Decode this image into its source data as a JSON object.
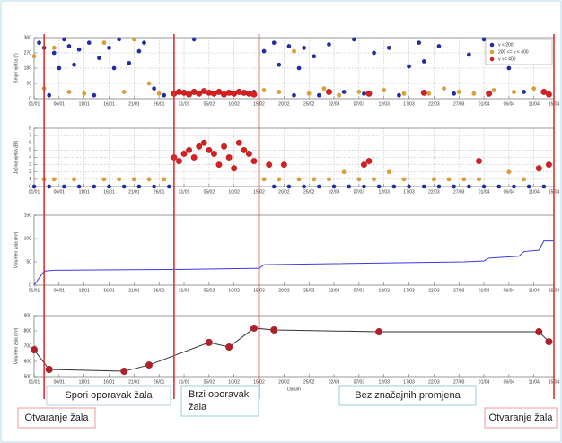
{
  "chart_data": [
    {
      "type": "scatter",
      "ylabel": "Smjer vjetra (°)",
      "ylim": [
        0,
        360
      ],
      "yticks": [
        0,
        90,
        180,
        270,
        360
      ],
      "grid": true,
      "legend": "upper right",
      "xlim": [
        "01/01",
        "15/04"
      ],
      "xticks": [
        "01/01",
        "06/01",
        "11/01",
        "16/01",
        "21/01",
        "26/01",
        "31/01",
        "05/02",
        "10/02",
        "15/02",
        "20/02",
        "25/02",
        "02/03",
        "07/03",
        "12/03",
        "17/03",
        "22/03",
        "27/03",
        "01/04",
        "06/04",
        "11/04",
        "15/04"
      ],
      "series": [
        {
          "name": "v < 200",
          "color": "#1f2ea8",
          "x": [
            "02/01",
            "03/01",
            "04/01",
            "05/01",
            "06/01",
            "07/01",
            "08/01",
            "09/01",
            "10/01",
            "12/01",
            "13/01",
            "14/01",
            "16/01",
            "17/01",
            "18/01",
            "20/01",
            "22/01",
            "23/01",
            "25/01",
            "27/01",
            "31/01",
            "02/02",
            "14/02",
            "16/02",
            "18/02",
            "19/02",
            "21/02",
            "22/02",
            "23/02",
            "24/02",
            "26/02",
            "27/02",
            "01/03",
            "04/03",
            "06/03",
            "08/03",
            "10/03",
            "13/03",
            "15/03",
            "17/03",
            "19/03",
            "20/03",
            "23/03",
            "26/03",
            "29/03",
            "01/04",
            "04/04",
            "06/04",
            "09/04",
            "12/04",
            "14/04"
          ],
          "values": [
            330,
            300,
            20,
            270,
            180,
            350,
            310,
            200,
            290,
            330,
            20,
            240,
            300,
            180,
            350,
            210,
            280,
            330,
            60,
            20,
            40,
            350,
            40,
            280,
            330,
            200,
            310,
            20,
            180,
            300,
            250,
            20,
            320,
            40,
            350,
            30,
            270,
            300,
            20,
            190,
            330,
            220,
            310,
            30,
            260,
            350,
            300,
            180,
            40,
            280,
            30
          ]
        },
        {
          "name": "200 <= v < 400",
          "color": "#e0a030",
          "x": [
            "01/01",
            "03/01",
            "05/01",
            "08/01",
            "11/01",
            "15/01",
            "19/01",
            "21/01",
            "24/01",
            "26/01",
            "16/02",
            "19/02",
            "22/02",
            "25/02",
            "28/02",
            "03/03",
            "07/03",
            "12/03",
            "16/03",
            "21/03",
            "24/03",
            "27/03",
            "30/03",
            "03/04",
            "07/04",
            "11/04"
          ],
          "values": [
            250,
            60,
            300,
            40,
            30,
            330,
            40,
            350,
            90,
            30,
            50,
            40,
            280,
            30,
            60,
            20,
            40,
            50,
            30,
            30,
            60,
            40,
            30,
            50,
            40,
            60
          ]
        },
        {
          "name": "v >= 400",
          "color": "#d42020",
          "x": [
            "29/01",
            "30/01",
            "31/01",
            "01/02",
            "02/02",
            "03/02",
            "04/02",
            "05/02",
            "06/02",
            "07/02",
            "08/02",
            "09/02",
            "10/02",
            "11/02",
            "12/02",
            "13/02",
            "14/02",
            "01/03",
            "09/03",
            "20/03",
            "02/04",
            "13/04",
            "14/04"
          ],
          "values": [
            30,
            40,
            35,
            25,
            40,
            30,
            45,
            35,
            30,
            40,
            25,
            35,
            30,
            40,
            35,
            30,
            25,
            40,
            30,
            35,
            30,
            40,
            25
          ]
        }
      ]
    },
    {
      "type": "scatter",
      "ylabel": "Jačina vjetra (Bf)",
      "ylim": [
        0,
        8
      ],
      "yticks": [
        0,
        1,
        2,
        3,
        4,
        5,
        6,
        7,
        8
      ],
      "grid": true,
      "xlim": [
        "01/01",
        "15/04"
      ],
      "xticks": [
        "01/01",
        "06/01",
        "11/01",
        "16/01",
        "21/01",
        "26/01",
        "31/01",
        "05/02",
        "10/02",
        "15/02",
        "20/02",
        "25/02",
        "02/03",
        "07/03",
        "12/03",
        "17/03",
        "22/03",
        "27/03",
        "01/04",
        "06/04",
        "11/04",
        "15/04"
      ],
      "series": [
        {
          "color": "#1f2ea8",
          "x": [
            "01/01",
            "04/01",
            "07/01",
            "10/01",
            "13/01",
            "16/01",
            "19/01",
            "22/01",
            "25/01",
            "28/01",
            "18/02",
            "21/02",
            "24/02",
            "27/02",
            "02/03",
            "05/03",
            "08/03",
            "11/03",
            "14/03",
            "17/03",
            "20/03",
            "23/03",
            "26/03",
            "29/03",
            "01/04",
            "04/04",
            "07/04",
            "10/04",
            "13/04"
          ],
          "values": [
            0,
            0,
            0,
            0,
            0,
            0,
            0,
            0,
            0,
            0,
            0,
            0,
            0,
            0,
            0,
            0,
            0,
            0,
            0,
            0,
            0,
            0,
            0,
            0,
            0,
            0,
            0,
            0,
            0
          ]
        },
        {
          "color": "#e0a030",
          "x": [
            "03/01",
            "05/01",
            "09/01",
            "15/01",
            "18/01",
            "21/01",
            "24/01",
            "27/01",
            "16/02",
            "19/02",
            "23/02",
            "26/02",
            "01/03",
            "04/03",
            "07/03",
            "10/03",
            "13/03",
            "16/03",
            "22/03",
            "25/03",
            "28/03",
            "31/03",
            "06/04",
            "09/04"
          ],
          "values": [
            1,
            1,
            1,
            1,
            1,
            1,
            1,
            1,
            1,
            1,
            1,
            1,
            1,
            2,
            1,
            1,
            2,
            1,
            1,
            1,
            1,
            1,
            2,
            1
          ]
        },
        {
          "color": "#d42020",
          "x": [
            "29/01",
            "30/01",
            "31/01",
            "01/02",
            "02/02",
            "03/02",
            "04/02",
            "05/02",
            "06/02",
            "07/02",
            "08/02",
            "09/02",
            "10/02",
            "11/02",
            "12/02",
            "13/02",
            "14/02",
            "17/02",
            "20/02",
            "08/03",
            "09/03",
            "31/03",
            "12/04",
            "14/04"
          ],
          "values": [
            4,
            3.5,
            4.5,
            5,
            4,
            5.5,
            6,
            5,
            4.5,
            3,
            5.5,
            4,
            2.5,
            6,
            5,
            4.5,
            3.5,
            3,
            3,
            3,
            3.5,
            3.5,
            2.5,
            3
          ]
        }
      ]
    },
    {
      "type": "line",
      "ylabel": "Volumen zala (m³)",
      "ylim": [
        0,
        150
      ],
      "yticks": [
        0,
        50,
        100,
        150
      ],
      "grid": false,
      "xlim": [
        "01/01",
        "15/04"
      ],
      "xticks": [
        "01/01",
        "06/01",
        "11/01",
        "16/01",
        "21/01",
        "26/01",
        "31/01",
        "05/02",
        "10/02",
        "15/02",
        "20/02",
        "25/02",
        "02/03",
        "07/03",
        "12/03",
        "17/03",
        "22/03",
        "27/03",
        "01/04",
        "06/04",
        "11/04",
        "15/04"
      ],
      "series": [
        {
          "color": "#3a3ae0",
          "x": [
            "01/01",
            "03/01",
            "05/01",
            "31/01",
            "14/02",
            "15/02",
            "16/02",
            "28/03",
            "01/04",
            "02/04",
            "08/04",
            "09/04",
            "12/04",
            "13/04",
            "15/04"
          ],
          "values": [
            0,
            30,
            32,
            34,
            36,
            36,
            44,
            50,
            52,
            58,
            62,
            72,
            75,
            95,
            95
          ]
        }
      ]
    },
    {
      "type": "line-markers",
      "ylabel": "Volumen zala (m³)",
      "xlabel": "Datum",
      "ylim": [
        500,
        900
      ],
      "yticks": [
        500,
        600,
        700,
        800,
        900
      ],
      "grid": false,
      "xlim": [
        "01/01",
        "15/04"
      ],
      "xticks": [
        "01/01",
        "06/01",
        "11/01",
        "16/01",
        "21/01",
        "26/01",
        "31/01",
        "05/02",
        "10/02",
        "15/02",
        "20/02",
        "25/02",
        "02/03",
        "07/03",
        "12/03",
        "17/03",
        "22/03",
        "27/03",
        "01/04",
        "06/04",
        "11/04",
        "15/04"
      ],
      "series": [
        {
          "color": "#333333",
          "marker_color": "#b0202a",
          "x": [
            "01/01",
            "04/01",
            "19/01",
            "24/01",
            "05/02",
            "09/02",
            "14/02",
            "18/02",
            "11/03",
            "12/04",
            "14/04"
          ],
          "values": [
            676,
            547,
            535,
            576,
            724,
            694,
            818,
            806,
            794,
            794,
            729
          ]
        }
      ]
    }
  ],
  "vlines": {
    "color": "#e03030",
    "x": [
      "03/01",
      "29/01",
      "15/02",
      "15/04"
    ]
  },
  "annotations": [
    "Spori oporavak žala",
    "Brzi oporavak žala",
    "Bez značajnih promjena",
    "Otvaranje žala",
    "Otvaranje žala"
  ]
}
